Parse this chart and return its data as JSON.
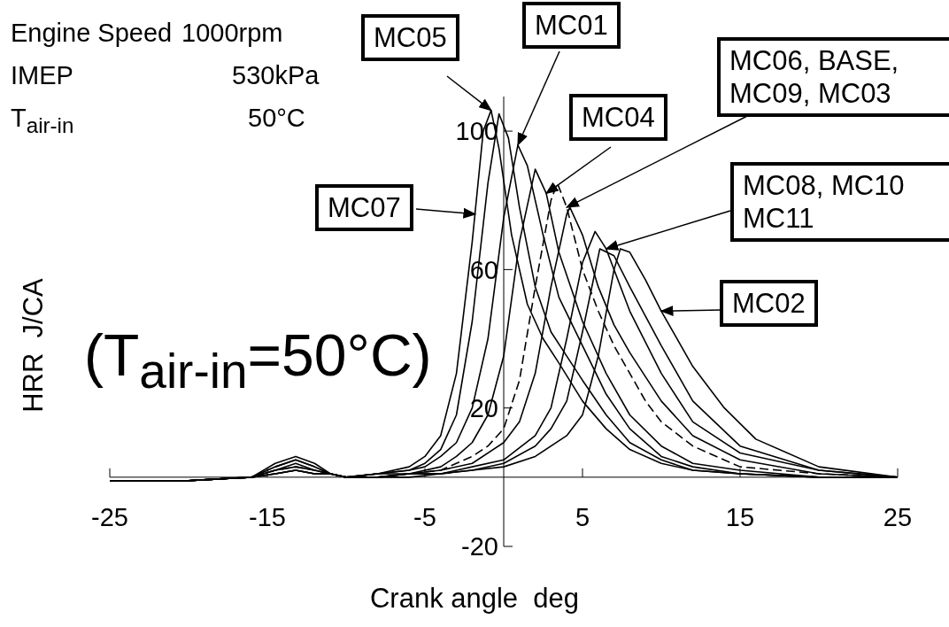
{
  "chart_data": {
    "type": "line",
    "xlabel": "Crank angle  deg",
    "ylabel": "HRR  J/CA",
    "xlim": [
      -25,
      25
    ],
    "xticks": [
      -25,
      -15,
      -5,
      5,
      15,
      25
    ],
    "ylim": [
      -20,
      110
    ],
    "yticks": [
      -20,
      20,
      60,
      100
    ],
    "marker": "none",
    "line_style": "solid",
    "annotations": [
      "Engine Speed",
      "1000rpm",
      "IMEP",
      "530kPa",
      "T$_{air-in}$",
      "50°C",
      "(T$_{air-in}$=50°C)",
      {
        "text": "MC05",
        "x": -0.8,
        "y": 106
      },
      {
        "text": "MC01",
        "x": 0.9,
        "y": 96
      },
      {
        "text": "MC04",
        "x": 2.7,
        "y": 82
      },
      {
        "text": "MC06, BASE, MC09, MC03",
        "x": 4,
        "y": 78
      },
      {
        "text": "MC08, MC10 MC11",
        "x": 6.5,
        "y": 66
      },
      {
        "text": "MC02",
        "x": 10,
        "y": 48
      },
      {
        "text": "MC07",
        "x": -1.8,
        "y": 76
      }
    ],
    "series": [
      {
        "color": "#000000",
        "x": [
          -25,
          -20,
          -16,
          -14.5,
          -13.2,
          -12,
          -11,
          -10,
          -8,
          -6,
          -5,
          -4,
          -3,
          -2,
          -1.3,
          -0.8,
          -0.3,
          0.5,
          1.5,
          2.5,
          3.5,
          5,
          6.5,
          8,
          10,
          12,
          15,
          20,
          25
        ],
        "values": [
          -1,
          -1,
          0,
          4,
          6,
          4,
          1,
          0,
          1,
          3,
          6,
          12,
          30,
          68,
          100,
          106,
          95,
          70,
          50,
          40,
          33,
          22,
          14,
          8,
          4,
          2,
          1,
          0,
          0
        ]
      },
      {
        "color": "#000000",
        "x": [
          -25,
          -20,
          -16,
          -14.5,
          -13.2,
          -12,
          -11,
          -10,
          -8,
          -6,
          -5,
          -4,
          -3,
          -2,
          -1,
          -0.3,
          0.3,
          1,
          2,
          3,
          4,
          5,
          6.5,
          8,
          10,
          12,
          15,
          20,
          25
        ],
        "values": [
          -1,
          -1,
          0,
          3,
          5,
          3,
          1,
          0,
          1,
          2,
          4,
          8,
          18,
          45,
          85,
          105,
          98,
          78,
          55,
          42,
          35,
          28,
          18,
          10,
          5,
          2,
          1,
          0,
          0
        ]
      },
      {
        "color": "#000000",
        "x": [
          -25,
          -20,
          -16,
          -14.5,
          -13.2,
          -12,
          -11,
          -10,
          -8,
          -6,
          -5,
          -4,
          -3,
          -2,
          -1,
          0,
          0.9,
          1.5,
          2.5,
          3.5,
          5,
          6.5,
          8,
          10,
          12,
          15,
          20,
          25
        ],
        "values": [
          -1,
          -1,
          0,
          3,
          5,
          3,
          1,
          0,
          1,
          2,
          3,
          6,
          10,
          20,
          40,
          75,
          96,
          90,
          70,
          52,
          38,
          24,
          14,
          6,
          3,
          1,
          0,
          0
        ]
      },
      {
        "color": "#000000",
        "x": [
          -25,
          -20,
          -16,
          -14.5,
          -13.2,
          -12,
          -11,
          -10,
          -8,
          -6,
          -4,
          -3,
          -2,
          -1,
          0,
          1,
          2,
          2.7,
          3.5,
          5,
          6.5,
          8,
          10,
          12,
          15,
          20,
          25
        ],
        "values": [
          -1,
          -1,
          0,
          2,
          4,
          2,
          1,
          0,
          1,
          1,
          3,
          6,
          10,
          18,
          35,
          68,
          89,
          82,
          65,
          45,
          30,
          18,
          9,
          4,
          2,
          0,
          0
        ]
      },
      {
        "color": "#000000",
        "line_style": "dashed",
        "x": [
          -25,
          -20,
          -16,
          -14.5,
          -13.2,
          -12,
          -11,
          -10,
          -8,
          -6,
          -4,
          -2,
          -1,
          0,
          1,
          2,
          3,
          3.4,
          4,
          5,
          6,
          7,
          8,
          9,
          10,
          12,
          15,
          20,
          25
        ],
        "values": [
          -1,
          -1,
          0,
          2,
          3,
          2,
          1,
          0,
          0,
          1,
          2,
          6,
          9,
          14,
          28,
          55,
          80,
          85,
          78,
          60,
          48,
          38,
          30,
          22,
          16,
          9,
          3,
          1,
          0
        ]
      },
      {
        "color": "#000000",
        "x": [
          -25,
          -20,
          -16,
          -14.5,
          -13.2,
          -12,
          -11,
          -10,
          -8,
          -6,
          -4,
          -2,
          0,
          1,
          2,
          3,
          4,
          4.2,
          5,
          6,
          7,
          8,
          10,
          12,
          15,
          20,
          25
        ],
        "values": [
          -1,
          -1,
          0,
          2,
          3,
          2,
          1,
          0,
          0,
          1,
          2,
          4,
          10,
          16,
          30,
          55,
          76,
          78,
          70,
          55,
          44,
          36,
          22,
          12,
          5,
          1,
          0
        ]
      },
      {
        "color": "#000000",
        "x": [
          -25,
          -20,
          -16,
          -14.5,
          -13.2,
          -12,
          -11,
          -10,
          -8,
          -6,
          -4,
          -2,
          0,
          2,
          3,
          4,
          5,
          5.8,
          6.5,
          8,
          10,
          12,
          15,
          20,
          25
        ],
        "values": [
          -1,
          -1,
          0,
          1,
          2,
          1,
          1,
          0,
          0,
          1,
          1,
          3,
          5,
          12,
          20,
          40,
          62,
          71,
          66,
          48,
          30,
          16,
          7,
          2,
          0
        ]
      },
      {
        "color": "#000000",
        "x": [
          -25,
          -20,
          -16,
          -14.5,
          -13.2,
          -12,
          -11,
          -10,
          -8,
          -6,
          -4,
          -2,
          0,
          2,
          3,
          4,
          5,
          6.1,
          7,
          8,
          10,
          12,
          15,
          20,
          25
        ],
        "values": [
          -1,
          -1,
          0,
          1,
          2,
          1,
          1,
          0,
          0,
          1,
          1,
          2,
          4,
          9,
          14,
          22,
          42,
          66,
          64,
          55,
          38,
          22,
          9,
          2,
          0
        ]
      },
      {
        "color": "#000000",
        "x": [
          -25,
          -20,
          -16,
          -14.5,
          -13.2,
          -12,
          -11,
          -10,
          -8,
          -6,
          -4,
          -2,
          0,
          2,
          4,
          5,
          6,
          7,
          7.4,
          8,
          9,
          10,
          12,
          14,
          16,
          20,
          25
        ],
        "values": [
          -1,
          -1,
          0,
          1,
          2,
          1,
          1,
          0,
          0,
          0,
          1,
          2,
          3,
          6,
          12,
          18,
          35,
          60,
          66,
          65,
          57,
          48,
          32,
          20,
          11,
          3,
          0
        ]
      }
    ]
  }
}
